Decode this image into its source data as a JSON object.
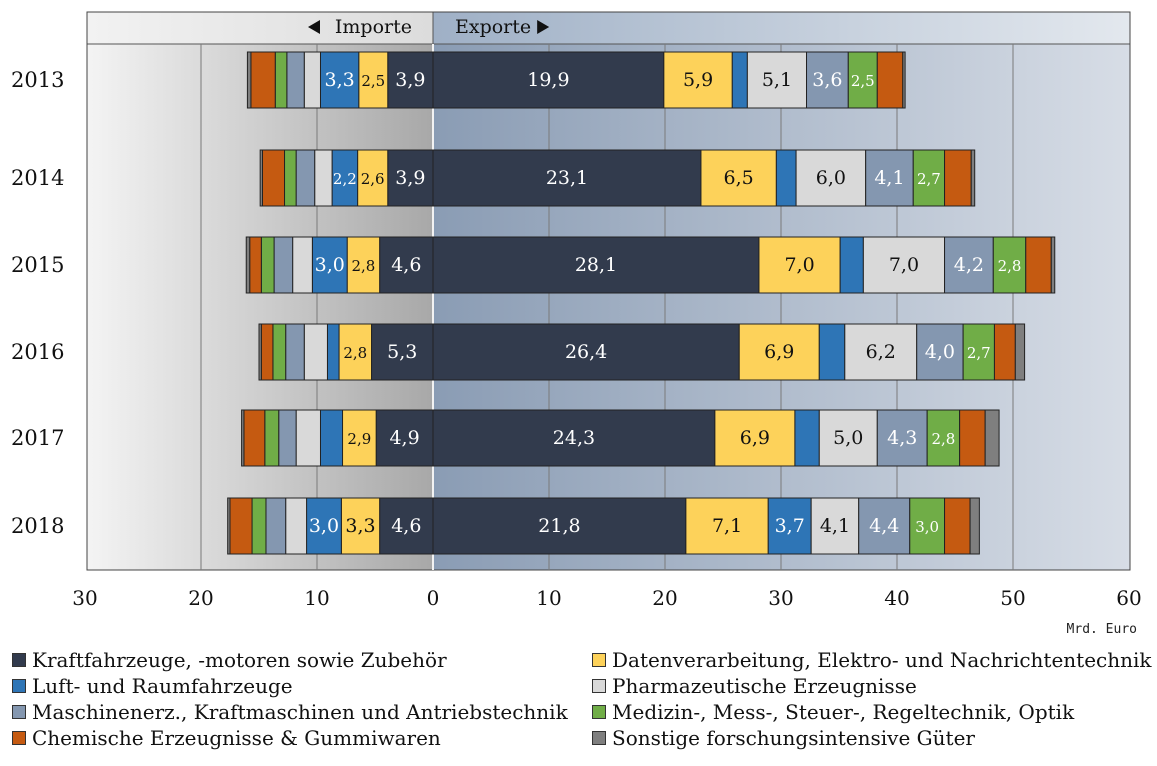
{
  "chart_data": {
    "type": "bar",
    "orientation": "horizontal-diverging-stacked",
    "unit": "Mrd. Euro",
    "header_left": "Importe",
    "header_right": "Exporte",
    "xlim": [
      -30,
      60
    ],
    "x_ticks": [
      -30,
      -20,
      -10,
      0,
      10,
      20,
      30,
      40,
      50,
      60
    ],
    "x_tick_labels": [
      "30",
      "20",
      "10",
      "0",
      "10",
      "20",
      "30",
      "40",
      "50",
      "60"
    ],
    "categories": [
      "2013",
      "2014",
      "2015",
      "2016",
      "2017",
      "2018"
    ],
    "series": [
      {
        "key": "kfz",
        "name": "Kraftfahrzeuge, -motoren sowie Zubehör",
        "color": "#323b4d",
        "imports": [
          3.9,
          3.9,
          4.6,
          5.3,
          4.9,
          4.6
        ],
        "exports": [
          19.9,
          23.1,
          28.1,
          26.4,
          24.3,
          21.8
        ],
        "imports_labels": [
          "3,9",
          "3,9",
          "4,6",
          "5,3",
          "4,9",
          "4,6"
        ],
        "exports_labels": [
          "19,9",
          "23,1",
          "28,1",
          "26,4",
          "24,3",
          "21,8"
        ]
      },
      {
        "key": "dv",
        "name": "Datenverarbeitung, Elektro- und Nachrichtentechnik",
        "color": "#fdd25a",
        "imports": [
          2.5,
          2.6,
          2.8,
          2.8,
          2.9,
          3.3
        ],
        "exports": [
          5.9,
          6.5,
          7.0,
          6.9,
          6.9,
          7.1
        ],
        "imports_labels": [
          "2,5",
          "2,6",
          "2,8",
          "2,8",
          "2,9",
          "3,3"
        ],
        "exports_labels": [
          "5,9",
          "6,5",
          "7,0",
          "6,9",
          "6,9",
          "7,1"
        ]
      },
      {
        "key": "luft",
        "name": "Luft- und Raumfahrzeuge",
        "color": "#2e75b6",
        "imports": [
          3.3,
          2.2,
          3.0,
          1.0,
          1.9,
          3.0
        ],
        "exports": [
          1.3,
          1.7,
          2.0,
          2.2,
          2.1,
          3.7
        ],
        "imports_labels": [
          "3,3",
          "2,2",
          "3,0",
          "",
          "",
          "3,0"
        ],
        "exports_labels": [
          "",
          "",
          "",
          "",
          "",
          "3,7"
        ]
      },
      {
        "key": "pharma",
        "name": "Pharmazeutische Erzeugnisse",
        "color": "#d9d9d9",
        "imports": [
          1.4,
          1.5,
          1.7,
          2.0,
          2.1,
          1.8
        ],
        "exports": [
          5.1,
          6.0,
          7.0,
          6.2,
          5.0,
          4.1
        ],
        "imports_labels": [
          "",
          "",
          "",
          "",
          "",
          ""
        ],
        "exports_labels": [
          "5,1",
          "6,0",
          "7,0",
          "6,2",
          "5,0",
          "4,1"
        ]
      },
      {
        "key": "masch",
        "name": "Maschinenerz., Kraftmaschinen und Antriebstechnik",
        "color": "#8497b0",
        "imports": [
          1.5,
          1.6,
          1.6,
          1.6,
          1.5,
          1.7
        ],
        "exports": [
          3.6,
          4.1,
          4.2,
          4.0,
          4.3,
          4.4
        ],
        "imports_labels": [
          "",
          "",
          "",
          "",
          "",
          ""
        ],
        "exports_labels": [
          "3,6",
          "4,1",
          "4,2",
          "4,0",
          "4,3",
          "4,4"
        ]
      },
      {
        "key": "med",
        "name": "Medizin-, Mess-, Steuer-, Regeltechnik, Optik",
        "color": "#70ad47",
        "imports": [
          1.0,
          1.0,
          1.1,
          1.1,
          1.2,
          1.2
        ],
        "exports": [
          2.5,
          2.7,
          2.8,
          2.7,
          2.8,
          3.0
        ],
        "imports_labels": [
          "",
          "",
          "",
          "",
          "",
          ""
        ],
        "exports_labels": [
          "2,5",
          "2,7",
          "2,8",
          "2,7",
          "2,8",
          "3,0"
        ]
      },
      {
        "key": "chem",
        "name": "Chemische Erzeugnisse & Gummiwaren",
        "color": "#c55a11",
        "imports": [
          2.1,
          1.9,
          1.0,
          1.0,
          1.8,
          1.9
        ],
        "exports": [
          2.2,
          2.3,
          2.2,
          1.8,
          2.2,
          2.2
        ],
        "imports_labels": [
          "",
          "",
          "",
          "",
          "",
          ""
        ],
        "exports_labels": [
          "",
          "",
          "",
          "",
          "",
          ""
        ]
      },
      {
        "key": "sonst",
        "name": "Sonstige forschungsintensive Güter",
        "color": "#7f7f7f",
        "imports": [
          0.3,
          0.2,
          0.3,
          0.2,
          0.2,
          0.2
        ],
        "exports": [
          0.2,
          0.3,
          0.3,
          0.8,
          1.2,
          0.8
        ],
        "imports_labels": [
          "",
          "",
          "",
          "",
          "",
          ""
        ],
        "exports_labels": [
          "",
          "",
          "",
          "",
          "",
          ""
        ]
      }
    ],
    "legend_order": [
      "kfz",
      "dv",
      "luft",
      "pharma",
      "masch",
      "med",
      "chem",
      "sonst"
    ],
    "grid": true,
    "legend_position": "bottom"
  }
}
